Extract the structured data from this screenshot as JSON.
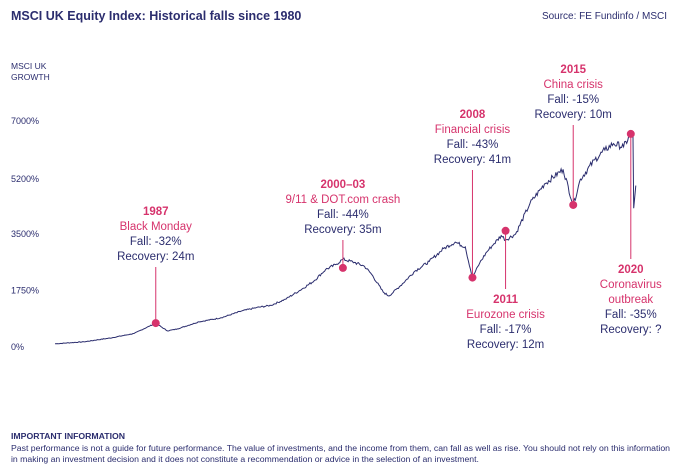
{
  "header": {
    "title": "MSCI UK Equity Index: Historical falls since 1980",
    "source": "Source: FE Fundinfo / MSCI"
  },
  "chart_data": {
    "type": "line",
    "ylabel": "MSCI UK\nGROWTH",
    "y_ticks": [
      "7000%",
      "5200%",
      "3500%",
      "1750%",
      "0%"
    ],
    "y_tick_values": [
      7000,
      5200,
      3500,
      1750,
      0
    ],
    "ylim": [
      0,
      7000
    ],
    "xlim": [
      1980,
      2020.5
    ],
    "grid": false,
    "series": [
      {
        "x": [
          1980,
          1982,
          1984,
          1985.5,
          1987.0,
          1987.8,
          1988.5,
          1990,
          1991.5,
          1993,
          1994,
          1995,
          1996,
          1997,
          1998,
          1998.8,
          1999.5,
          2000,
          2000.8,
          2001.5,
          2002,
          2002.8,
          2003.2,
          2004,
          2005,
          2006,
          2007,
          2007.8,
          2008.5,
          2009.0,
          2009.5,
          2010,
          2010.5,
          2011.0,
          2011.3,
          2012,
          2013,
          2014,
          2015.3,
          2016.0,
          2016.5,
          2017.5,
          2018.2,
          2018.8,
          2019.5,
          2020.0,
          2020.15,
          2020.2,
          2020.35
        ],
        "values": [
          100,
          160,
          290,
          420,
          740,
          500,
          560,
          780,
          900,
          1120,
          1220,
          1290,
          1480,
          1750,
          2050,
          2400,
          2550,
          2720,
          2620,
          2500,
          2250,
          1700,
          1580,
          1900,
          2350,
          2650,
          3050,
          3250,
          3100,
          2150,
          2600,
          2950,
          3200,
          3450,
          3320,
          3500,
          4450,
          5050,
          5500,
          4400,
          5200,
          5800,
          6100,
          6300,
          6200,
          6600,
          6500,
          4300,
          5000
        ]
      }
    ],
    "annotations": [
      {
        "year": "1987",
        "name": "Black Monday",
        "fall": "Fall: -32%",
        "recovery": "Recovery: 24m",
        "x": 1987.0,
        "y": 740
      },
      {
        "year": "2000–03",
        "name": "9/11 & DOT.com crash",
        "fall": "Fall: -44%",
        "recovery": "Recovery: 35m",
        "x": 2000.0,
        "y": 2450
      },
      {
        "year": "2008",
        "name": "Financial crisis",
        "fall": "Fall: -43%",
        "recovery": "Recovery: 41m",
        "x": 2009.0,
        "y": 2150
      },
      {
        "year": "2011",
        "name": "Eurozone crisis",
        "fall": "Fall: -17%",
        "recovery": "Recovery: 12m",
        "x": 2011.3,
        "y": 3600
      },
      {
        "year": "2015",
        "name": "China crisis",
        "fall": "Fall: -15%",
        "recovery": "Recovery: 10m",
        "x": 2016.0,
        "y": 4400
      },
      {
        "year": "2020",
        "name": "Coronavirus\noutbreak",
        "fall": "Fall: -35%",
        "recovery": "Recovery: ?",
        "x": 2020.0,
        "y": 6600
      }
    ]
  },
  "footer": {
    "heading": "IMPORTANT INFORMATION",
    "text": "Past performance is not a guide for future performance. The value of investments, and the income from them, can fall as well as rise. You should not rely on this information in making an investment decision and it does not constitute a recommendation or advice in the selection of an investment."
  },
  "colors": {
    "line": "#2b2d6e",
    "accent": "#d6336c",
    "text": "#2b2d6e"
  }
}
